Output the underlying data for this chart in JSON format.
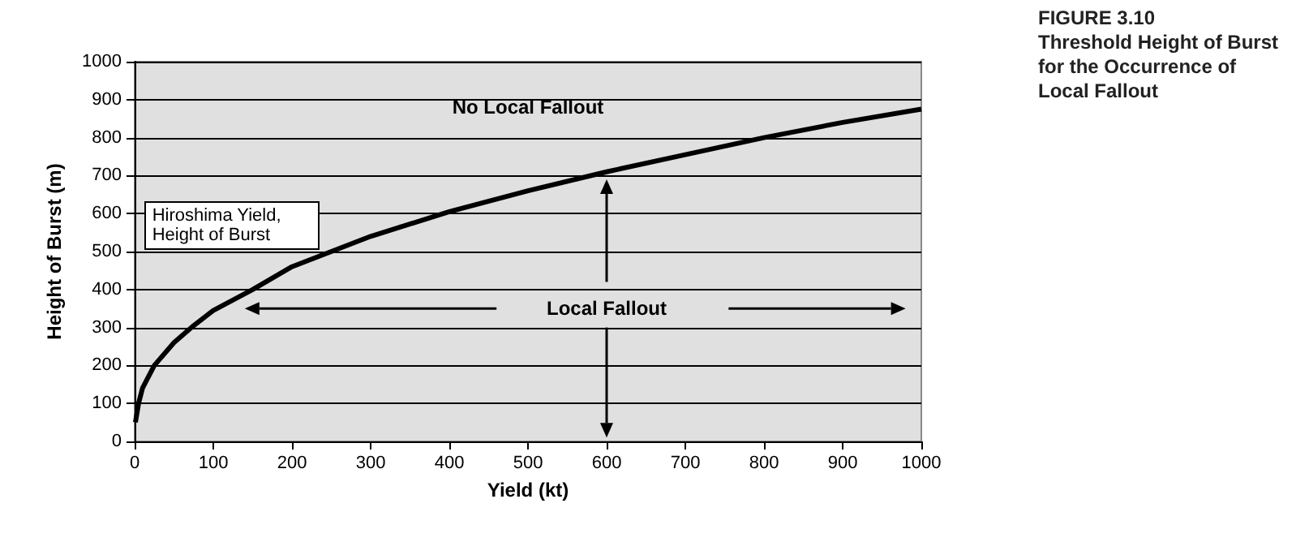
{
  "chart_data": {
    "type": "line",
    "title": "FIGURE 3.10",
    "subtitle": "Threshold Height of Burst for the Occurrence of Local Fallout",
    "xlabel": "Yield (kt)",
    "ylabel": "Height of Burst (m)",
    "x": [
      1,
      5,
      10,
      25,
      50,
      75,
      100,
      150,
      200,
      250,
      300,
      400,
      500,
      600,
      700,
      800,
      900,
      1000
    ],
    "series": [
      {
        "color": "#000000",
        "values": [
          50,
          100,
          140,
          200,
          260,
          305,
          345,
          400,
          460,
          500,
          540,
          605,
          660,
          710,
          755,
          800,
          840,
          875
        ]
      }
    ],
    "xlim": [
      0,
      1000
    ],
    "xticks": [
      0,
      100,
      200,
      300,
      400,
      500,
      600,
      700,
      800,
      900,
      1000
    ],
    "ylim": [
      0,
      1000
    ],
    "yticks": [
      0,
      100,
      200,
      300,
      400,
      500,
      600,
      700,
      800,
      900,
      1000
    ],
    "grid": "y",
    "marker": "none",
    "line_style": "solid",
    "annotations": [
      "No Local Fallout",
      "Local Fallout",
      "Hiroshima Yield, Height of Burst"
    ]
  }
}
